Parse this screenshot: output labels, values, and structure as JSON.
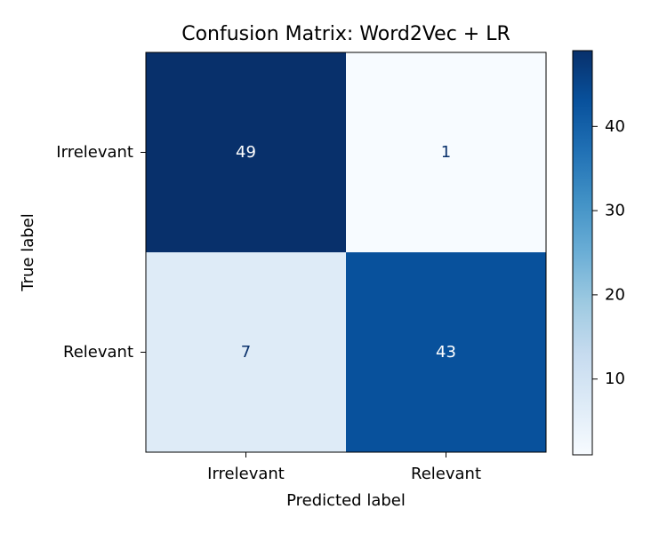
{
  "chart_data": {
    "type": "heatmap",
    "title": "Confusion Matrix: Word2Vec + LR",
    "xlabel": "Predicted label",
    "ylabel": "True label",
    "x_categories": [
      "Irrelevant",
      "Relevant"
    ],
    "y_categories": [
      "Irrelevant",
      "Relevant"
    ],
    "values": [
      [
        49,
        1
      ],
      [
        7,
        43
      ]
    ],
    "colormap": "Blues",
    "colorbar": {
      "ticks": [
        10,
        20,
        30,
        40
      ],
      "tick_labels": [
        "10",
        "20",
        "30",
        "40"
      ],
      "range": [
        1,
        49
      ]
    },
    "grid": false
  }
}
